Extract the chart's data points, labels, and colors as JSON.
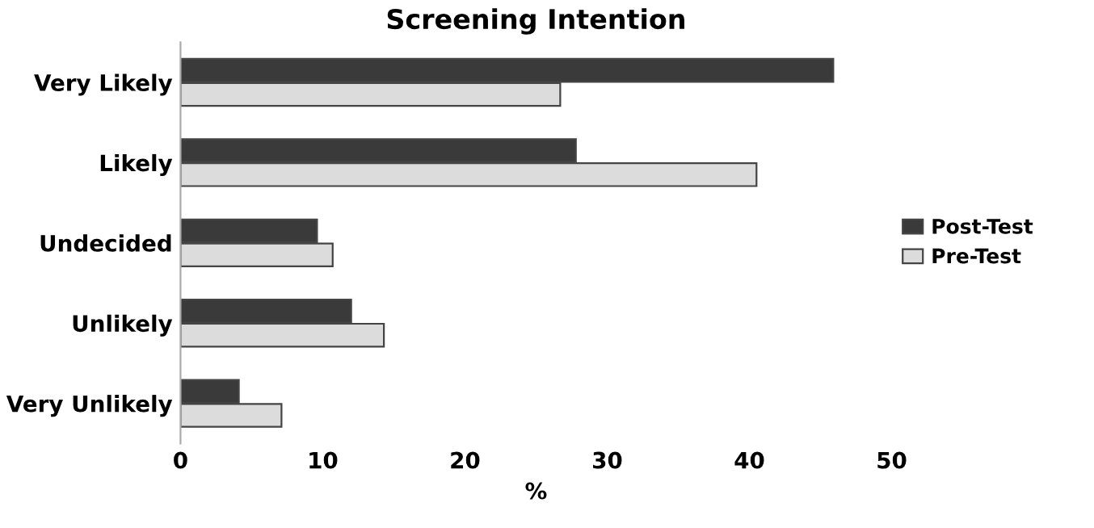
{
  "chart_data": {
    "type": "bar",
    "orientation": "horizontal",
    "title": "Screening Intention",
    "xlabel": "%",
    "categories": [
      "Very Likely",
      "Likely",
      "Undecided",
      "Unlikely",
      "Very Unlikely"
    ],
    "series": [
      {
        "name": "Post-Test",
        "color": "#3a3a3a",
        "values": [
          45.9,
          27.8,
          9.6,
          12.0,
          4.1
        ]
      },
      {
        "name": "Pre-Test",
        "color": "#dcdcdc",
        "values": [
          26.7,
          40.5,
          10.7,
          14.3,
          7.1
        ]
      }
    ],
    "xlim": [
      0,
      50
    ],
    "xticks": [
      0,
      10,
      20,
      30,
      40,
      50
    ],
    "grid": false,
    "legend": "right"
  }
}
